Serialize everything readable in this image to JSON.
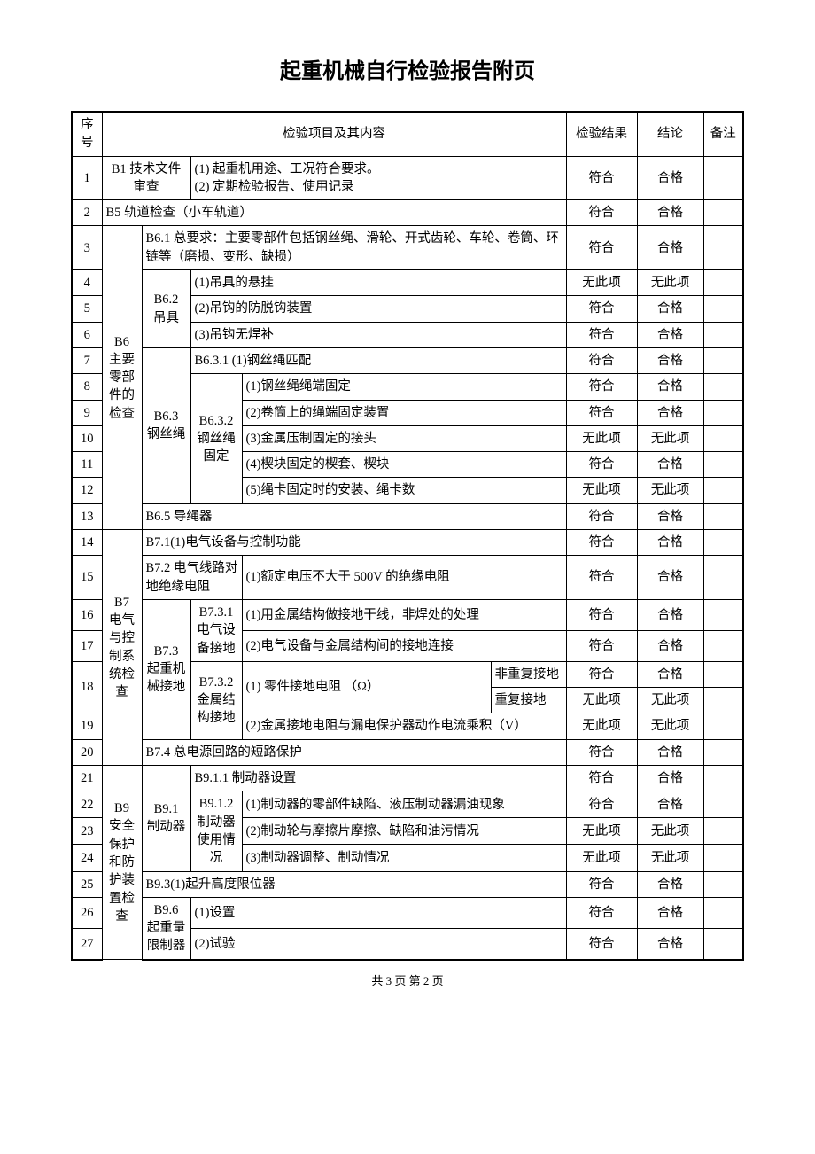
{
  "title": "起重机械自行检验报告附页",
  "header": {
    "seq": "序号",
    "item": "检验项目及其内容",
    "result": "检验结果",
    "conclusion": "结论",
    "remark": "备注"
  },
  "results": {
    "conform": "符合",
    "pass": "合格",
    "none": "无此项"
  },
  "rows": {
    "r1": {
      "seq": "1",
      "c1": "B1 技术文件审查",
      "c2": "(1) 起重机用途、工况符合要求。\n(2) 定期检验报告、使用记录",
      "result": "符合",
      "conclusion": "合格"
    },
    "r2": {
      "seq": "2",
      "c1": "B5  轨道检查（小车轨道）",
      "result": "符合",
      "conclusion": "合格"
    },
    "b6_label": "B6\n主要零部件的检查",
    "r3": {
      "seq": "3",
      "c2": "B6.1 总要求：主要零部件包括钢丝绳、滑轮、开式齿轮、车轮、卷筒、环链等（磨损、变形、缺损）",
      "result": "符合",
      "conclusion": "合格"
    },
    "b62_label": "B6.2\n吊具",
    "r4": {
      "seq": "4",
      "c3": "(1)吊具的悬挂",
      "result": "无此项",
      "conclusion": "无此项"
    },
    "r5": {
      "seq": "5",
      "c3": "(2)吊钩的防脱钩装置",
      "result": "符合",
      "conclusion": "合格"
    },
    "r6": {
      "seq": "6",
      "c3": "(3)吊钩无焊补",
      "result": "符合",
      "conclusion": "合格"
    },
    "b63_label": "B6.3\n钢丝绳",
    "r7": {
      "seq": "7",
      "c3": "B6.3.1 (1)钢丝绳匹配",
      "result": "符合",
      "conclusion": "合格"
    },
    "b632_label": "B6.3.2\n钢丝绳固定",
    "r8": {
      "seq": "8",
      "c4": "(1)钢丝绳绳端固定",
      "result": "符合",
      "conclusion": "合格"
    },
    "r9": {
      "seq": "9",
      "c4": "(2)卷筒上的绳端固定装置",
      "result": "符合",
      "conclusion": "合格"
    },
    "r10": {
      "seq": "10",
      "c4": "(3)金属压制固定的接头",
      "result": "无此项",
      "conclusion": "无此项"
    },
    "r11": {
      "seq": "11",
      "c4": "(4)楔块固定的楔套、楔块",
      "result": "符合",
      "conclusion": "合格"
    },
    "r12": {
      "seq": "12",
      "c4": "(5)绳卡固定时的安装、绳卡数",
      "result": "无此项",
      "conclusion": "无此项"
    },
    "r13": {
      "seq": "13",
      "c2": "B6.5  导绳器",
      "result": "符合",
      "conclusion": "合格"
    },
    "b7_label": "B7\n电气与控制系统检查",
    "r14": {
      "seq": "14",
      "c2": "B7.1(1)电气设备与控制功能",
      "result": "符合",
      "conclusion": "合格"
    },
    "r15": {
      "seq": "15",
      "c2": "B7.2 电气线路对地绝缘电阻",
      "c3": "(1)额定电压不大于 500V 的绝缘电阻",
      "result": "符合",
      "conclusion": "合格"
    },
    "b73_label": "B7.3\n起重机械接地",
    "b731_label": "B7.3.1\n电气设备接地",
    "r16": {
      "seq": "16",
      "c4": "(1)用金属结构做接地干线，非焊处的处理",
      "result": "符合",
      "conclusion": "合格"
    },
    "r17": {
      "seq": "17",
      "c4": "(2)电气设备与金属结构间的接地连接",
      "result": "符合",
      "conclusion": "合格"
    },
    "b732_label": "B7.3.2\n金属结构接地",
    "r18a": {
      "seq": "18",
      "c4": "(1) 零件接地电阻    （Ω）",
      "c5": "非重复接地",
      "result": "符合",
      "conclusion": "合格"
    },
    "r18b": {
      "c5": "重复接地",
      "result": "无此项",
      "conclusion": "无此项"
    },
    "r19": {
      "seq": "19",
      "c4": "(2)金属接地电阻与漏电保护器动作电流乘积（V）",
      "result": "无此项",
      "conclusion": "无此项"
    },
    "r20": {
      "seq": "20",
      "c2": "B7.4  总电源回路的短路保护",
      "result": "符合",
      "conclusion": "合格"
    },
    "b9_label": "B9\n安全保护和防护装置检查",
    "b91_label": "B9.1\n制动器",
    "r21": {
      "seq": "21",
      "c3": "B9.1.1 制动器设置",
      "result": "符合",
      "conclusion": "合格"
    },
    "b912_label": "B9.1.2\n制动器使用情况",
    "r22": {
      "seq": "22",
      "c4": "(1)制动器的零部件缺陷、液压制动器漏油现象",
      "result": "符合",
      "conclusion": "合格"
    },
    "r23": {
      "seq": "23",
      "c4": "(2)制动轮与摩擦片摩擦、缺陷和油污情况",
      "result": "无此项",
      "conclusion": "无此项"
    },
    "r24": {
      "seq": "24",
      "c4": "(3)制动器调整、制动情况",
      "result": "无此项",
      "conclusion": "无此项"
    },
    "r25": {
      "seq": "25",
      "c2": "B9.3(1)起升高度限位器",
      "result": "符合",
      "conclusion": "合格"
    },
    "b96_label": "B9.6\n起重量限制器",
    "r26": {
      "seq": "26",
      "c3": "(1)设置",
      "result": "符合",
      "conclusion": "合格"
    },
    "r27": {
      "seq": "27",
      "c3": "(2)试验",
      "result": "符合",
      "conclusion": "合格"
    }
  },
  "footer": "共 3 页  第 2 页",
  "colors": {
    "border": "#000000",
    "background": "#ffffff",
    "text": "#000000"
  },
  "fonts": {
    "body_size": 14.5,
    "title_size": 24
  }
}
